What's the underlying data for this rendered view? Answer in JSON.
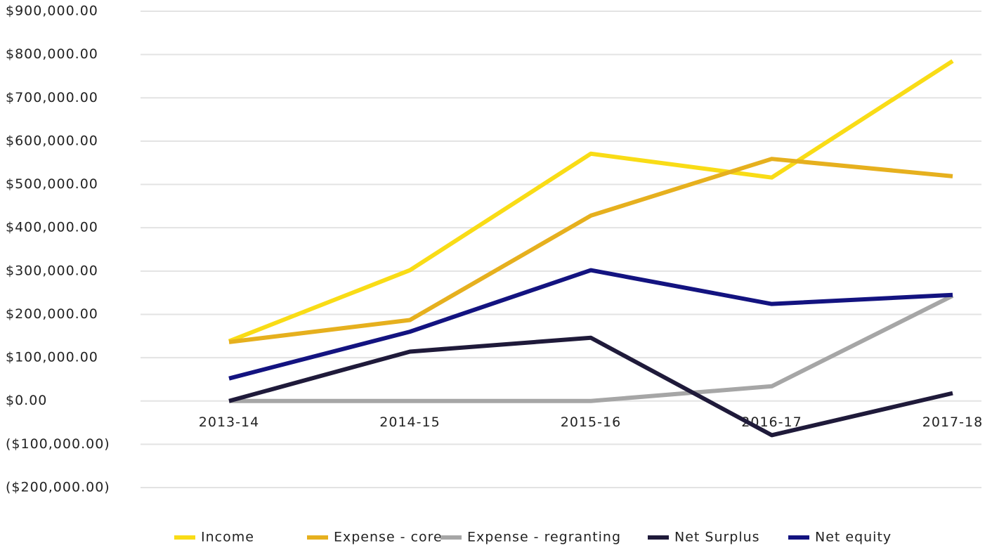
{
  "chart_data": {
    "type": "line",
    "categories": [
      "2013-14",
      "2014-15",
      "2015-16",
      "2016-17",
      "2017-18"
    ],
    "series": [
      {
        "name": "Income",
        "color": "#f9dc16",
        "values": [
          138000,
          302000,
          571000,
          516000,
          785000
        ]
      },
      {
        "name": "Expense - core",
        "color": "#e6b01e",
        "values": [
          136000,
          187000,
          428000,
          559000,
          519000
        ]
      },
      {
        "name": "Expense - regranting",
        "color": "#a6a6a6",
        "values": [
          0,
          0,
          0,
          34000,
          243000
        ]
      },
      {
        "name": "Net Surplus",
        "color": "#1f1a3a",
        "values": [
          0,
          114000,
          146000,
          -79000,
          18000
        ]
      },
      {
        "name": "Net equity",
        "color": "#131380",
        "values": [
          52000,
          160000,
          302000,
          224000,
          245000
        ]
      }
    ],
    "ylim": [
      -200000,
      900000
    ],
    "yticks": [
      {
        "value": 900000,
        "label": "$900,000.00"
      },
      {
        "value": 800000,
        "label": "$800,000.00"
      },
      {
        "value": 700000,
        "label": "$700,000.00"
      },
      {
        "value": 600000,
        "label": "$600,000.00"
      },
      {
        "value": 500000,
        "label": "$500,000.00"
      },
      {
        "value": 400000,
        "label": "$400,000.00"
      },
      {
        "value": 300000,
        "label": "$300,000.00"
      },
      {
        "value": 200000,
        "label": "$200,000.00"
      },
      {
        "value": 100000,
        "label": "$100,000.00"
      },
      {
        "value": 0,
        "label": "$0.00"
      },
      {
        "value": -100000,
        "label": "($100,000.00)"
      },
      {
        "value": -200000,
        "label": "($200,000.00)"
      }
    ],
    "grid": true,
    "legend": "bottom"
  }
}
